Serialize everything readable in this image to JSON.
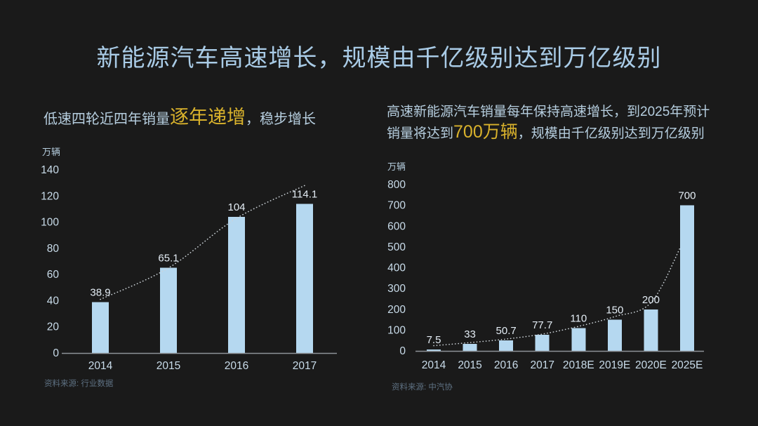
{
  "slide": {
    "title": "新能源汽车高速增长，规模由千亿级别达到万亿级别",
    "background_color": "#1a1a1a",
    "title_color": "#a9cbe6",
    "highlight_color": "#d9b22c"
  },
  "left_section": {
    "subtitle": {
      "pre": "低速四轮近四年销量",
      "highlight": "逐年递增",
      "post": "，稳步增长"
    },
    "source": "资料来源: 行业数据"
  },
  "right_section": {
    "subtitle": {
      "pre": "高速新能源汽车销量每年保持高速增长，到2025年预计销量将达到",
      "highlight": "700万辆",
      "post": "，规模由千亿级别达到万亿级别"
    },
    "source": "资料来源: 中汽协"
  },
  "chart_data": [
    {
      "id": "low-speed-ev-sales",
      "type": "bar",
      "title": "低速四轮近四年销量",
      "unit_label": "万辆",
      "categories": [
        "2014",
        "2015",
        "2016",
        "2017"
      ],
      "values": [
        38.9,
        65.1,
        104,
        114.1
      ],
      "value_labels": [
        "38.9",
        "65.1",
        "104",
        "114.1"
      ],
      "ylim": [
        0,
        140
      ],
      "ytick_step": 20,
      "grid": false,
      "legend": false,
      "bar_color": "#b5d8f0",
      "trendline": {
        "x_index": [
          0,
          1,
          2,
          3
        ],
        "values": [
          41,
          65,
          103,
          128
        ]
      }
    },
    {
      "id": "high-speed-ev-sales",
      "type": "bar",
      "title": "高速新能源汽车销量",
      "unit_label": "万辆",
      "categories": [
        "2014",
        "2015",
        "2016",
        "2017",
        "2018E",
        "2019E",
        "2020E",
        "2025E"
      ],
      "values": [
        7.5,
        33,
        50.7,
        77.7,
        110,
        150,
        200,
        700
      ],
      "value_labels": [
        "7.5",
        "33",
        "50.7",
        "77.7",
        "110",
        "150",
        "200",
        "700"
      ],
      "ylim": [
        0,
        800
      ],
      "ytick_step": 100,
      "grid": false,
      "legend": false,
      "bar_color": "#b5d8f0",
      "trendline": {
        "x_index": [
          0,
          1,
          2,
          3,
          4,
          5,
          6,
          6.82
        ],
        "values": [
          25,
          40,
          57,
          81,
          118,
          165,
          232,
          500
        ]
      }
    }
  ],
  "chart_style": {
    "axis_color": "#8e9398",
    "tick_label_color": "#c9dcea",
    "value_label_color": "#e4edf5",
    "trend_color": "#ccd3d8",
    "unit_label_color": "#b6cedf"
  }
}
